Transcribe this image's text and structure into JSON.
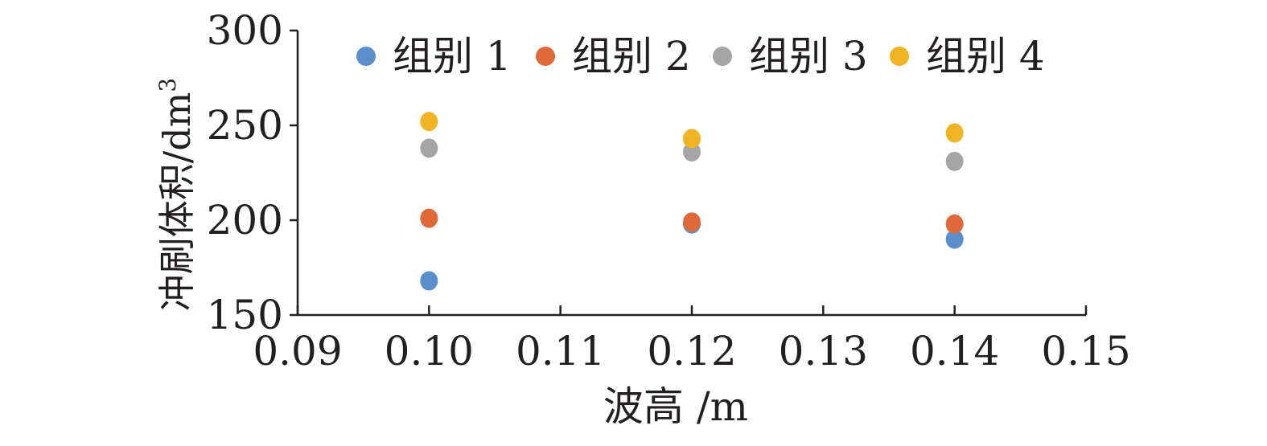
{
  "chart_data": {
    "type": "scatter",
    "title": "",
    "xlabel": "波高 /m",
    "ylabel": "冲刷体积/dm",
    "ylabel_superscript": "3",
    "xlim": [
      0.09,
      0.15
    ],
    "ylim": [
      150,
      300
    ],
    "xticks": [
      "0.09",
      "0.10",
      "0.11",
      "0.12",
      "0.13",
      "0.14",
      "0.15"
    ],
    "yticks": [
      "150",
      "200",
      "250",
      "300"
    ],
    "grid": false,
    "legend_position": "top",
    "series": [
      {
        "name": "组别 1",
        "color": "#5b8fcb",
        "points": [
          [
            0.1,
            168
          ],
          [
            0.12,
            198
          ],
          [
            0.14,
            190
          ]
        ]
      },
      {
        "name": "组别 2",
        "color": "#e0693a",
        "points": [
          [
            0.1,
            201
          ],
          [
            0.12,
            199
          ],
          [
            0.14,
            198
          ]
        ]
      },
      {
        "name": "组别 3",
        "color": "#a5a5a5",
        "points": [
          [
            0.1,
            238
          ],
          [
            0.12,
            236
          ],
          [
            0.14,
            231
          ]
        ]
      },
      {
        "name": "组别 4",
        "color": "#f0b323",
        "points": [
          [
            0.1,
            252
          ],
          [
            0.12,
            243
          ],
          [
            0.14,
            246
          ]
        ]
      }
    ]
  }
}
